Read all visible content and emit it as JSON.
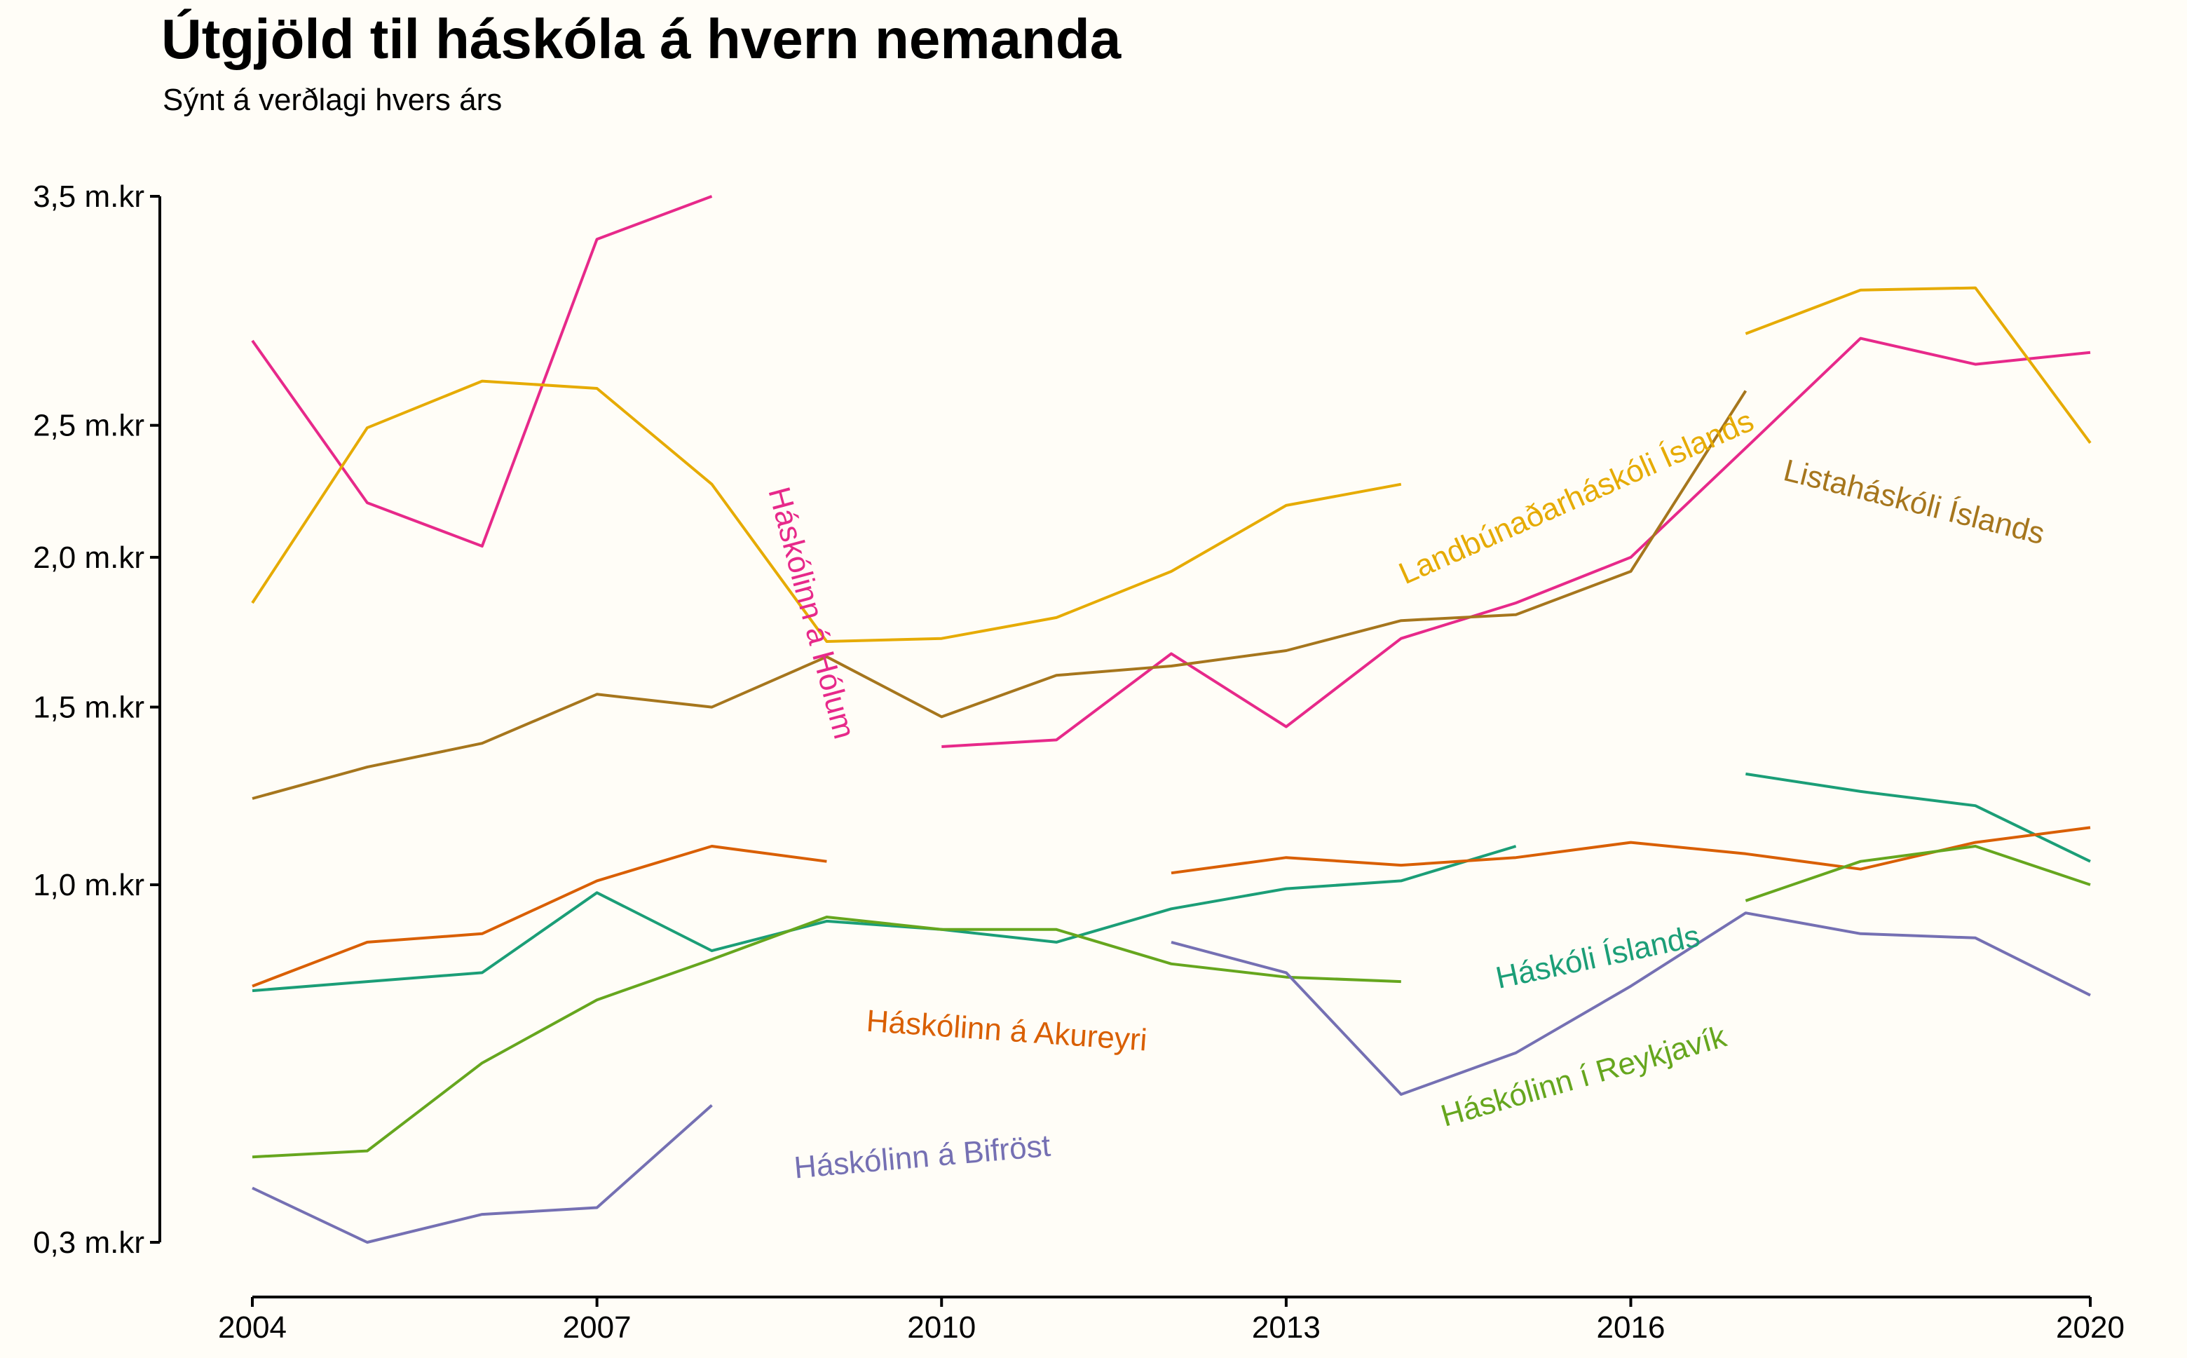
{
  "chart_data": {
    "type": "line",
    "title": "Útgjöld til háskóla á hvern nemanda",
    "subtitle": "Sýnt á verðlagi hvers árs",
    "xlabel": "",
    "ylabel": "",
    "x": [
      2004,
      2005,
      2006,
      2007,
      2008,
      2009,
      2010,
      2011,
      2012,
      2013,
      2014,
      2015,
      2016,
      2017,
      2018,
      2019,
      2020
    ],
    "x_ticks": [
      2004,
      2007,
      2010,
      2013,
      2016,
      2020
    ],
    "x_tick_labels": [
      "2004",
      "2007",
      "2010",
      "2013",
      "2016",
      "2020"
    ],
    "y_ticks": [
      0.3,
      1.0,
      1.5,
      2.0,
      2.5,
      3.5
    ],
    "y_tick_labels": [
      "0,3 m.kr",
      "1,0 m.kr",
      "1,5 m.kr",
      "2,0 m.kr",
      "2,5 m.kr",
      "3,5 m.kr"
    ],
    "y_scale": "sqrt",
    "ylim": [
      0.3,
      3.5
    ],
    "grid": false,
    "legend": "direct labels on lines",
    "series": [
      {
        "name": "Háskólinn á Hólum",
        "color": "#e7298a",
        "values": [
          2.85,
          2.2,
          2.04,
          3.3,
          3.5,
          null,
          1.38,
          1.4,
          1.67,
          1.44,
          1.72,
          1.84,
          2.0,
          2.41,
          2.86,
          2.75,
          2.8
        ]
      },
      {
        "name": "Landbúnaðarháskóli Íslands",
        "color": "#e6ab02",
        "values": [
          1.84,
          2.49,
          2.68,
          2.65,
          2.27,
          1.71,
          1.72,
          1.79,
          1.95,
          2.19,
          2.27,
          null,
          null,
          2.88,
          3.07,
          3.08,
          2.43
        ]
      },
      {
        "name": "Listaháskóli Íslands",
        "color": "#a6761d",
        "values": [
          1.23,
          1.32,
          1.39,
          1.54,
          1.5,
          1.66,
          1.47,
          1.6,
          1.63,
          1.68,
          1.78,
          1.8,
          1.95,
          2.64,
          null,
          null,
          2.42
        ]
      },
      {
        "name": "Háskóli Íslands",
        "color": "#1b9e77",
        "values": [
          0.75,
          0.77,
          0.79,
          0.98,
          0.84,
          0.91,
          0.89,
          0.86,
          0.94,
          0.99,
          1.01,
          1.1,
          null,
          1.3,
          1.25,
          1.21,
          1.06
        ]
      },
      {
        "name": "Háskólinn á Akureyri",
        "color": "#d95f02",
        "values": [
          0.76,
          0.86,
          0.88,
          1.01,
          1.1,
          1.06,
          null,
          null,
          1.03,
          1.07,
          1.05,
          1.07,
          1.11,
          1.08,
          1.04,
          1.11,
          1.15
        ]
      },
      {
        "name": "Háskólinn í Reykjavík",
        "color": "#66a61e",
        "values": [
          0.43,
          0.44,
          0.6,
          0.73,
          0.82,
          0.92,
          0.89,
          0.89,
          0.81,
          0.78,
          0.77,
          null,
          null,
          0.96,
          1.06,
          1.1,
          1.0
        ]
      },
      {
        "name": "Háskólinn á Bifröst",
        "color": "#7570b3",
        "values": [
          0.38,
          0.3,
          0.34,
          0.35,
          0.52,
          null,
          null,
          null,
          0.86,
          0.79,
          0.54,
          0.62,
          0.76,
          0.93,
          0.88,
          0.87,
          0.74
        ]
      }
    ]
  }
}
